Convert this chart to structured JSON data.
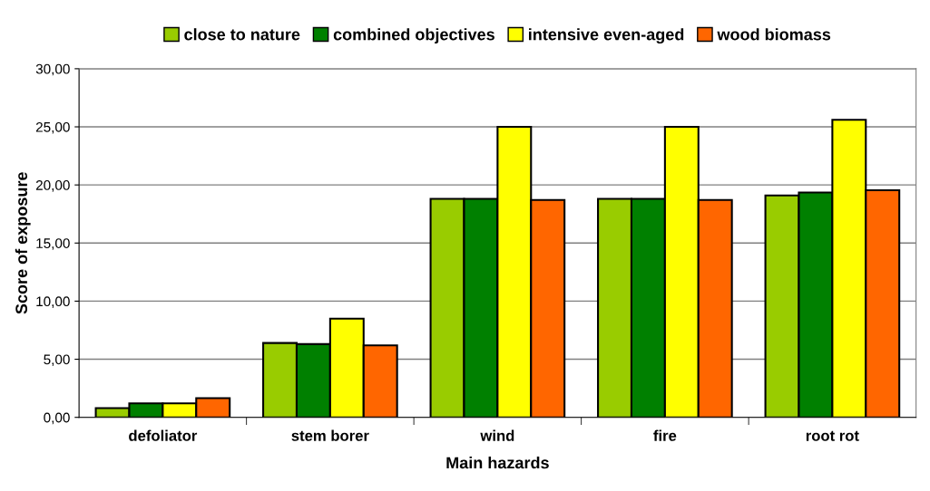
{
  "chart_data": {
    "type": "bar",
    "xlabel": "Main hazards",
    "ylabel": "Score of exposure",
    "categories": [
      "defoliator",
      "stem borer",
      "wind",
      "fire",
      "root rot"
    ],
    "series": [
      {
        "name": "close to nature",
        "color": "#99cc00",
        "values": [
          0.8,
          6.4,
          18.8,
          18.8,
          19.1
        ]
      },
      {
        "name": "combined objectives",
        "color": "#008000",
        "values": [
          1.2,
          6.3,
          18.8,
          18.8,
          19.35
        ]
      },
      {
        "name": "intensive even-aged",
        "color": "#ffff00",
        "values": [
          1.2,
          8.5,
          25.0,
          25.0,
          25.6
        ]
      },
      {
        "name": "wood biomass",
        "color": "#ff6600",
        "values": [
          1.65,
          6.2,
          18.7,
          18.7,
          19.55
        ]
      }
    ],
    "ylim": [
      0,
      30
    ],
    "yticks": [
      {
        "value": 0,
        "label": "0,00"
      },
      {
        "value": 5,
        "label": "5,00"
      },
      {
        "value": 10,
        "label": "10,00"
      },
      {
        "value": 15,
        "label": "15,00"
      },
      {
        "value": 20,
        "label": "20,00"
      },
      {
        "value": 25,
        "label": "25,00"
      },
      {
        "value": 30,
        "label": "30,00"
      }
    ],
    "grid": "y",
    "legend": "top"
  }
}
